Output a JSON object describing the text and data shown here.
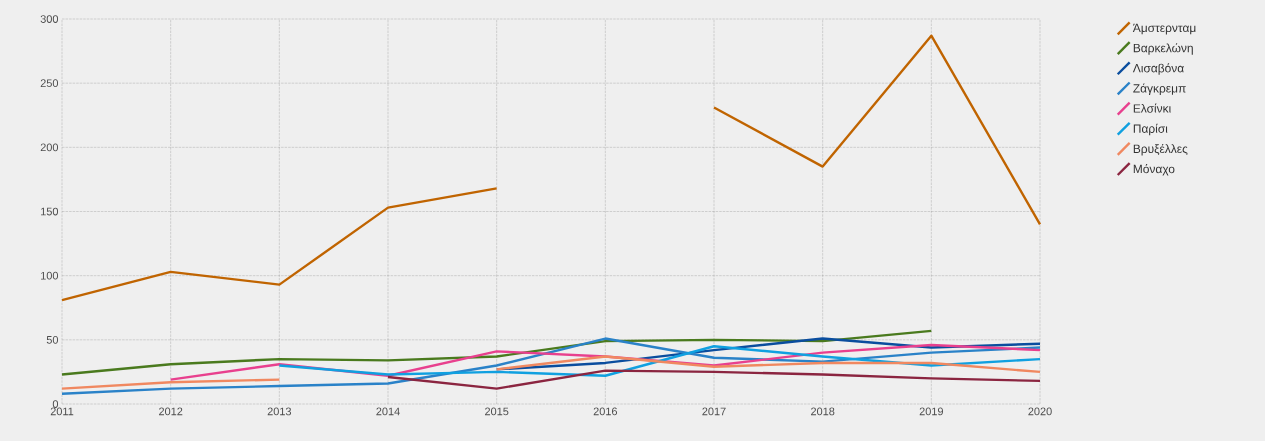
{
  "chart_data": {
    "type": "line",
    "x": [
      2011,
      2012,
      2013,
      2014,
      2015,
      2016,
      2017,
      2018,
      2019,
      2020
    ],
    "series": [
      {
        "name": "Άμστερνταμ",
        "color": "#c06400",
        "values": [
          81,
          103,
          93,
          153,
          168,
          null,
          231,
          185,
          287,
          140
        ]
      },
      {
        "name": "Βαρκελώνη",
        "color": "#4a7a1e",
        "values": [
          23,
          31,
          35,
          34,
          37,
          49,
          50,
          49,
          57,
          null
        ]
      },
      {
        "name": "Λισαβόνα",
        "color": "#0a4d9e",
        "values": [
          null,
          null,
          null,
          null,
          27,
          32,
          42,
          51,
          44,
          47
        ]
      },
      {
        "name": "Ζάγκρεμπ",
        "color": "#2a82c8",
        "values": [
          8,
          12,
          14,
          16,
          30,
          51,
          36,
          33,
          40,
          44
        ]
      },
      {
        "name": "Ελσίνκι",
        "color": "#e8408e",
        "values": [
          null,
          19,
          31,
          22,
          41,
          37,
          30,
          40,
          46,
          42
        ]
      },
      {
        "name": "Παρίσι",
        "color": "#10a0e0",
        "values": [
          null,
          null,
          30,
          23,
          25,
          22,
          45,
          37,
          30,
          35
        ]
      },
      {
        "name": "Βρυξέλλες",
        "color": "#f08860",
        "values": [
          12,
          17,
          19,
          null,
          27,
          37,
          29,
          32,
          32,
          25
        ]
      },
      {
        "name": "Μόναχο",
        "color": "#8b2540",
        "values": [
          null,
          null,
          null,
          21,
          12,
          26,
          25,
          23,
          20,
          18
        ]
      }
    ],
    "xlim": [
      2011,
      2020
    ],
    "xticks": [
      2011,
      2012,
      2013,
      2014,
      2015,
      2016,
      2017,
      2018,
      2019,
      2020
    ],
    "ylim": [
      0,
      300
    ],
    "yticks": [
      0,
      50,
      100,
      150,
      200,
      250,
      300
    ],
    "grid": true,
    "legend": "right",
    "marker": "none",
    "line_style": "solid"
  }
}
